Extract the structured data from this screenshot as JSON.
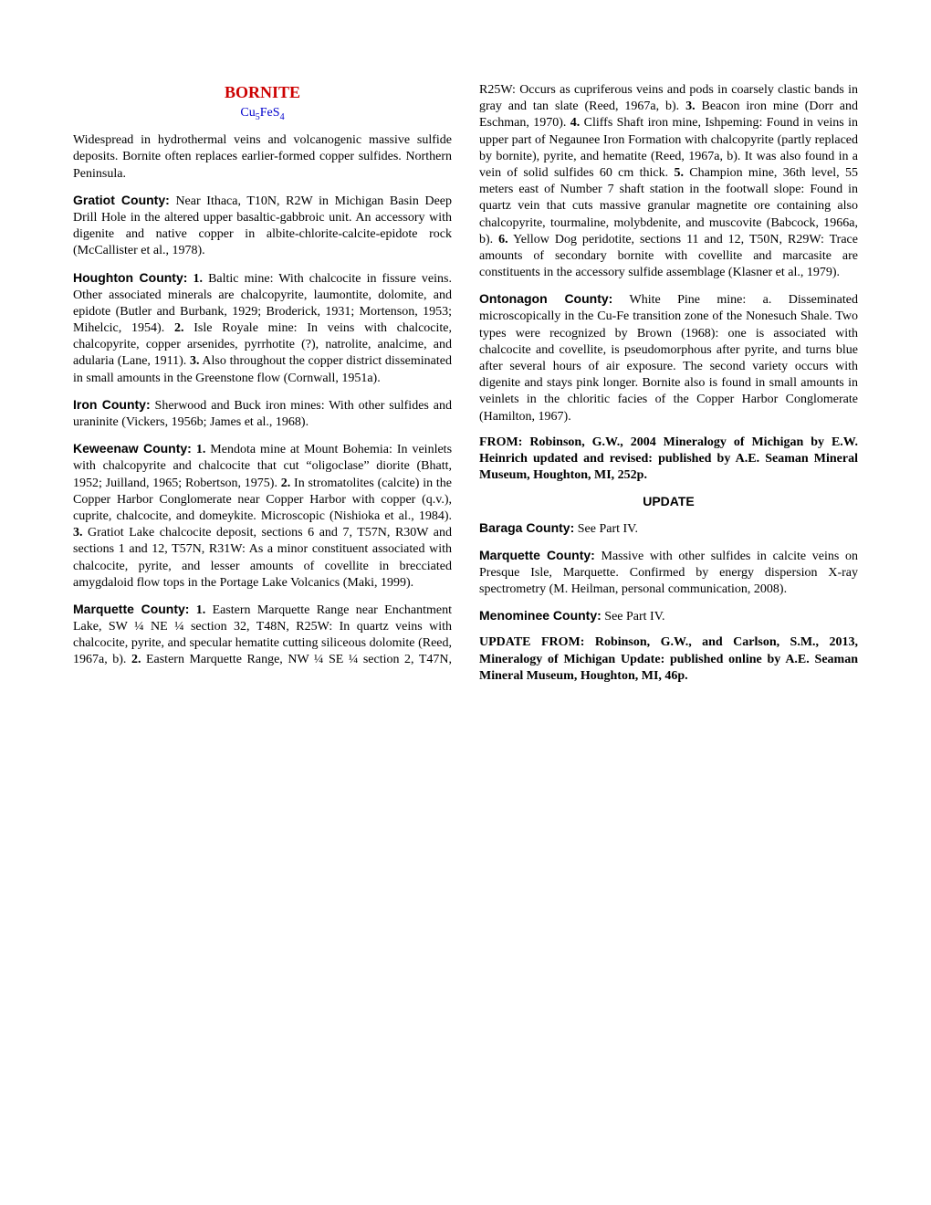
{
  "title": "BORNITE",
  "formula_parts": [
    "Cu",
    "5",
    "FeS",
    "4"
  ],
  "intro": "Widespread in hydrothermal veins and volcanogenic massive sulfide deposits. Bornite often replaces earlier-formed copper sulfides. Northern Peninsula.",
  "gratiot": {
    "label": "Gratiot County:",
    "text": " Near Ithaca, T10N, R2W in Michigan Basin Deep Drill Hole in the altered upper basaltic-gabbroic unit. An accessory with digenite and native copper in albite-chlorite-calcite-epidote rock (McCallister et al., 1978)."
  },
  "houghton": {
    "label": "Houghton County:",
    "n1": "1.",
    "t1": " Baltic mine: With chalcocite in fissure veins. Other associated minerals are chalcopyrite, laumontite, dolomite, and epidote (Butler and Burbank, 1929; Broderick, 1931; Mortenson, 1953; Mihelcic, 1954). ",
    "n2": "2.",
    "t2": " Isle Royale mine: In veins with chalcocite, chalcopyrite, copper arsenides, pyrrhotite (?), natrolite, analcime, and adularia (Lane, 1911). ",
    "n3": "3.",
    "t3": " Also throughout the copper district disseminated in small amounts in the Greenstone flow (Cornwall, 1951a)."
  },
  "iron": {
    "label": "Iron County:",
    "text": " Sherwood and Buck iron mines: With other sulfides and uraninite (Vickers, 1956b; James et al., 1968)."
  },
  "keweenaw": {
    "label": "Keweenaw County:",
    "n1": "1.",
    "t1": " Mendota mine at Mount Bohemia: In veinlets with chalcopyrite and chalcocite that cut “oligoclase” diorite (Bhatt, 1952; Juilland, 1965; Robertson, 1975). ",
    "n2": "2.",
    "t2": " In stromatolites (calcite) in the Copper Harbor Conglomerate near Copper Harbor with copper (q.v.), cuprite, chalcocite, and domeykite. Microscopic (Nishioka et al., 1984). ",
    "n3": "3.",
    "t3": " Gratiot Lake chalcocite deposit, sections 6 and 7, T57N, R30W and sections 1 and 12, T57N, R31W: As a minor constituent associated with chalcocite, pyrite, and lesser amounts of covellite in brecciated amygdaloid flow tops in the Portage Lake Volcanics (Maki, 1999)."
  },
  "marquette": {
    "label": "Marquette County:",
    "n1": "1.",
    "t1": " Eastern Marquette Range near Enchantment Lake, SW ¼ NE ¼ section 32, T48N, R25W: In quartz veins with chalcocite, pyrite, and specular hematite cutting siliceous dolomite (Reed, 1967a, b). ",
    "n2": "2.",
    "t2": " Eastern Marquette Range, NW ¼ SE ¼ section 2, T47N, R25W: Occurs as cupriferous veins and pods in coarsely clastic bands in gray and tan slate (Reed, 1967a, b). ",
    "n3": "3.",
    "t3": " Beacon iron mine (Dorr and Eschman, 1970). ",
    "n4": "4.",
    "t4": " Cliffs Shaft iron mine, Ishpeming: Found in veins in upper part of Negaunee Iron Formation with chalcopyrite (partly replaced by bornite), pyrite, and hematite (Reed, 1967a, b). It was also found in a vein of solid sulfides 60 cm thick. ",
    "n5": "5.",
    "t5": " Champion mine, 36th level, 55 meters east of Number 7 shaft station in the footwall slope: Found in quartz vein that cuts massive granular magnetite ore containing also chalcopyrite, tourmaline, molybdenite, and muscovite (Babcock, 1966a, b). ",
    "n6": "6.",
    "t6": " Yellow Dog peridotite, sections 11 and 12, T50N, R29W: Trace amounts of secondary bornite with covellite and marcasite are constituents in the accessory sulfide assemblage (Klasner et al., 1979)."
  },
  "ontonagon": {
    "label": "Ontonagon County:",
    "text": " White Pine mine: a. Disseminated microscopically in the Cu-Fe transition zone of the Nonesuch Shale. Two types were recognized by Brown (1968): one is associated with chalcocite and covellite, is pseudomorphous after pyrite, and turns blue after several hours of air exposure. The second variety occurs with digenite and stays pink longer. Bornite also is found in small amounts in veinlets in the chloritic facies of the Copper Harbor Conglomerate (Hamilton, 1967)."
  },
  "from1": "FROM: Robinson, G.W., 2004 Mineralogy of Michigan by E.W. Heinrich updated and revised: published by A.E. Seaman Mineral Museum, Houghton, MI, 252p.",
  "update_heading": "UPDATE",
  "baraga": {
    "label": "Baraga County:",
    "text": " See Part IV."
  },
  "marquette2": {
    "label": "Marquette County:",
    "text": " Massive with other sulfides in calcite veins on Presque Isle, Marquette. Confirmed by energy dispersion X-ray spectrometry (M. Heilman, personal communication, 2008)."
  },
  "menominee": {
    "label": "Menominee County:",
    "text": " See Part IV."
  },
  "from2": "UPDATE FROM: Robinson, G.W., and Carlson, S.M., 2013, Mineralogy of Michigan Update: published online by A.E. Seaman Mineral Museum, Houghton, MI, 46p."
}
